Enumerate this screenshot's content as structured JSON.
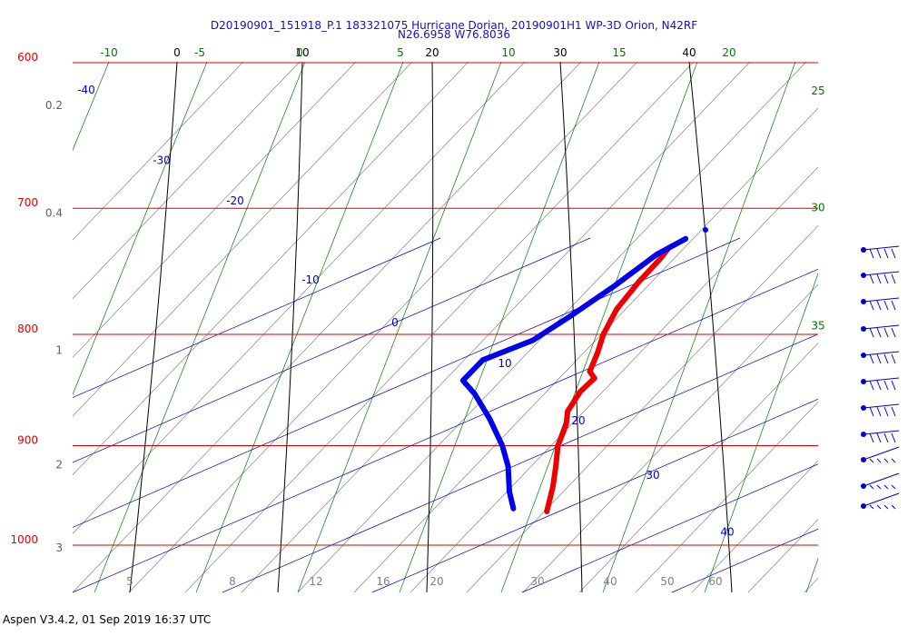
{
  "header": {
    "title_line1": "D20190901_151918_P.1 183321075 Hurricane Dorian, 20190901H1 WP-3D Orion, N42RF",
    "title_line2": "N26.6958 W76.8036"
  },
  "footer": {
    "text": "Aspen V3.4.2, 01 Sep 2019  16:37 UTC"
  },
  "colors": {
    "pressure": "#dd0000",
    "temperature": "#000000",
    "dry_adiabat": "#707070",
    "moist_adiabat": "#007700",
    "mixing_ratio": "#0000cc",
    "temp_trace": "#ee0000",
    "dewpoint_trace": "#0000ee",
    "wind_barbs": "#0000cc"
  },
  "chart_data": {
    "type": "skew-t",
    "xlabel": "",
    "ylabel": "",
    "pressure_levels_hPa": [
      600,
      700,
      800,
      900,
      1000
    ],
    "pressure_tick_labels": [
      "600",
      "700",
      "800",
      "900",
      "1000"
    ],
    "height_axis": [
      {
        "label": "0.2",
        "pressure": 629
      },
      {
        "label": "0.4",
        "pressure": 705
      },
      {
        "label": "1",
        "pressure": 815
      },
      {
        "label": "2",
        "pressure": 920
      },
      {
        "label": "3",
        "pressure": 1005
      }
    ],
    "isotherms_C": [
      0,
      10,
      20,
      30,
      40
    ],
    "isotherm_labels": [
      "0",
      "10",
      "20",
      "30",
      "40"
    ],
    "moist_adiabat_labels": [
      {
        "label": "-10",
        "pressure": 600
      },
      {
        "label": "-5",
        "pressure": 600
      },
      {
        "label": "0",
        "pressure": 600
      },
      {
        "label": "5",
        "pressure": 600
      },
      {
        "label": "10",
        "pressure": 600
      },
      {
        "label": "15",
        "pressure": 600
      },
      {
        "label": "20",
        "pressure": 600
      },
      {
        "label": "25",
        "pressure": 623
      },
      {
        "label": "30",
        "pressure": 705
      },
      {
        "label": "35",
        "pressure": 799
      }
    ],
    "mixing_ratio_labels": [
      {
        "label": "-40",
        "pressure": 620
      },
      {
        "label": "-30",
        "pressure": 668
      },
      {
        "label": "-20",
        "pressure": 697
      },
      {
        "label": "-10",
        "pressure": 758
      },
      {
        "label": "0",
        "pressure": 793
      },
      {
        "label": "10",
        "pressure": 828
      },
      {
        "label": "20",
        "pressure": 880
      },
      {
        "label": "30",
        "pressure": 932
      },
      {
        "label": "40",
        "pressure": 990
      }
    ],
    "bottom_axis_labels": [
      "5",
      "8",
      "12",
      "16",
      "20",
      "30",
      "40",
      "50",
      "60"
    ],
    "series": [
      {
        "name": "Temperature",
        "points": [
          {
            "p": 730,
            "t": 16.6
          },
          {
            "p": 739,
            "t": 16.8
          },
          {
            "p": 757,
            "t": 16.9
          },
          {
            "p": 779,
            "t": 17.3
          },
          {
            "p": 800,
            "t": 18.3
          },
          {
            "p": 816,
            "t": 19.4
          },
          {
            "p": 832,
            "t": 20.3
          },
          {
            "p": 838,
            "t": 21.3
          },
          {
            "p": 850,
            "t": 21.2
          },
          {
            "p": 868,
            "t": 21.8
          },
          {
            "p": 880,
            "t": 22.8
          },
          {
            "p": 900,
            "t": 23.9
          },
          {
            "p": 920,
            "t": 25.5
          },
          {
            "p": 940,
            "t": 27.0
          },
          {
            "p": 965,
            "t": 28.6
          }
        ]
      },
      {
        "name": "Dewpoint",
        "points": [
          {
            "p": 723,
            "t": 17.3
          },
          {
            "p": 735,
            "t": 16.1
          },
          {
            "p": 760,
            "t": 15.1
          },
          {
            "p": 785,
            "t": 13.8
          },
          {
            "p": 805,
            "t": 12.6
          },
          {
            "p": 822,
            "t": 9.9
          },
          {
            "p": 840,
            "t": 9.9
          },
          {
            "p": 852,
            "t": 12.1
          },
          {
            "p": 875,
            "t": 15.6
          },
          {
            "p": 900,
            "t": 19.0
          },
          {
            "p": 920,
            "t": 21.3
          },
          {
            "p": 945,
            "t": 23.6
          },
          {
            "p": 962,
            "t": 25.4
          }
        ]
      }
    ],
    "wind_barbs": [
      {
        "pressure": 730
      },
      {
        "pressure": 752
      },
      {
        "pressure": 774
      },
      {
        "pressure": 796
      },
      {
        "pressure": 818
      },
      {
        "pressure": 840
      },
      {
        "pressure": 862
      },
      {
        "pressure": 885
      },
      {
        "pressure": 908
      },
      {
        "pressure": 935
      },
      {
        "pressure": 960
      }
    ],
    "ylim_hPa": [
      600,
      1000
    ],
    "grid": true
  }
}
